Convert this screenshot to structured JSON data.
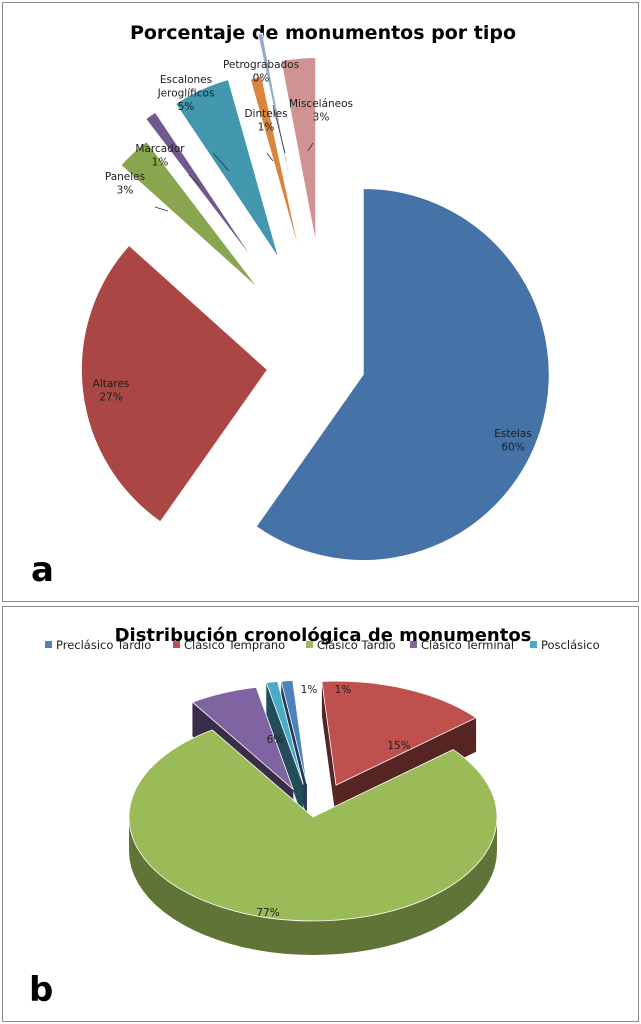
{
  "chart_data": [
    {
      "type": "pie",
      "panel_label": "a",
      "title": "Porcentaje de monumentos por tipo",
      "slices": [
        {
          "name": "Estelas",
          "value": 60,
          "label": "60%",
          "color": "#4572A7"
        },
        {
          "name": "Altares",
          "value": 27,
          "label": "27%",
          "color": "#AA4643"
        },
        {
          "name": "Paneles",
          "value": 3,
          "label": "3%",
          "color": "#89A54E"
        },
        {
          "name": "Marcador",
          "value": 1,
          "label": "1%",
          "color": "#71588F"
        },
        {
          "name": "Escalones Jeroglíficos",
          "value": 5,
          "label": "5%",
          "color": "#4198AF"
        },
        {
          "name": "Dinteles",
          "value": 1,
          "label": "1%",
          "color": "#DB843D"
        },
        {
          "name": "Petrograbados",
          "value": 0.4,
          "label": "0%",
          "color": "#93A9CF"
        },
        {
          "name": "Misceláneos",
          "value": 3,
          "label": "3%",
          "color": "#D19392"
        }
      ],
      "legend": "none"
    },
    {
      "type": "pie",
      "panel_label": "b",
      "title": "Distribución cronológica de monumentos",
      "slices": [
        {
          "name": "Preclásico Tardío",
          "value": 1,
          "label": "1%",
          "color": "#4F81BD"
        },
        {
          "name": "Clásico Temprano",
          "value": 15,
          "label": "15%",
          "color": "#C0504D"
        },
        {
          "name": "Clásico Tardío",
          "value": 77,
          "label": "77%",
          "color": "#9BBB59"
        },
        {
          "name": "Clásico Terminal",
          "value": 6,
          "label": "6%",
          "color": "#8064A2"
        },
        {
          "name": "Posclásico",
          "value": 1,
          "label": "1%",
          "color": "#4BACC6"
        }
      ],
      "legend": "top",
      "style": "3d-exploded"
    }
  ]
}
